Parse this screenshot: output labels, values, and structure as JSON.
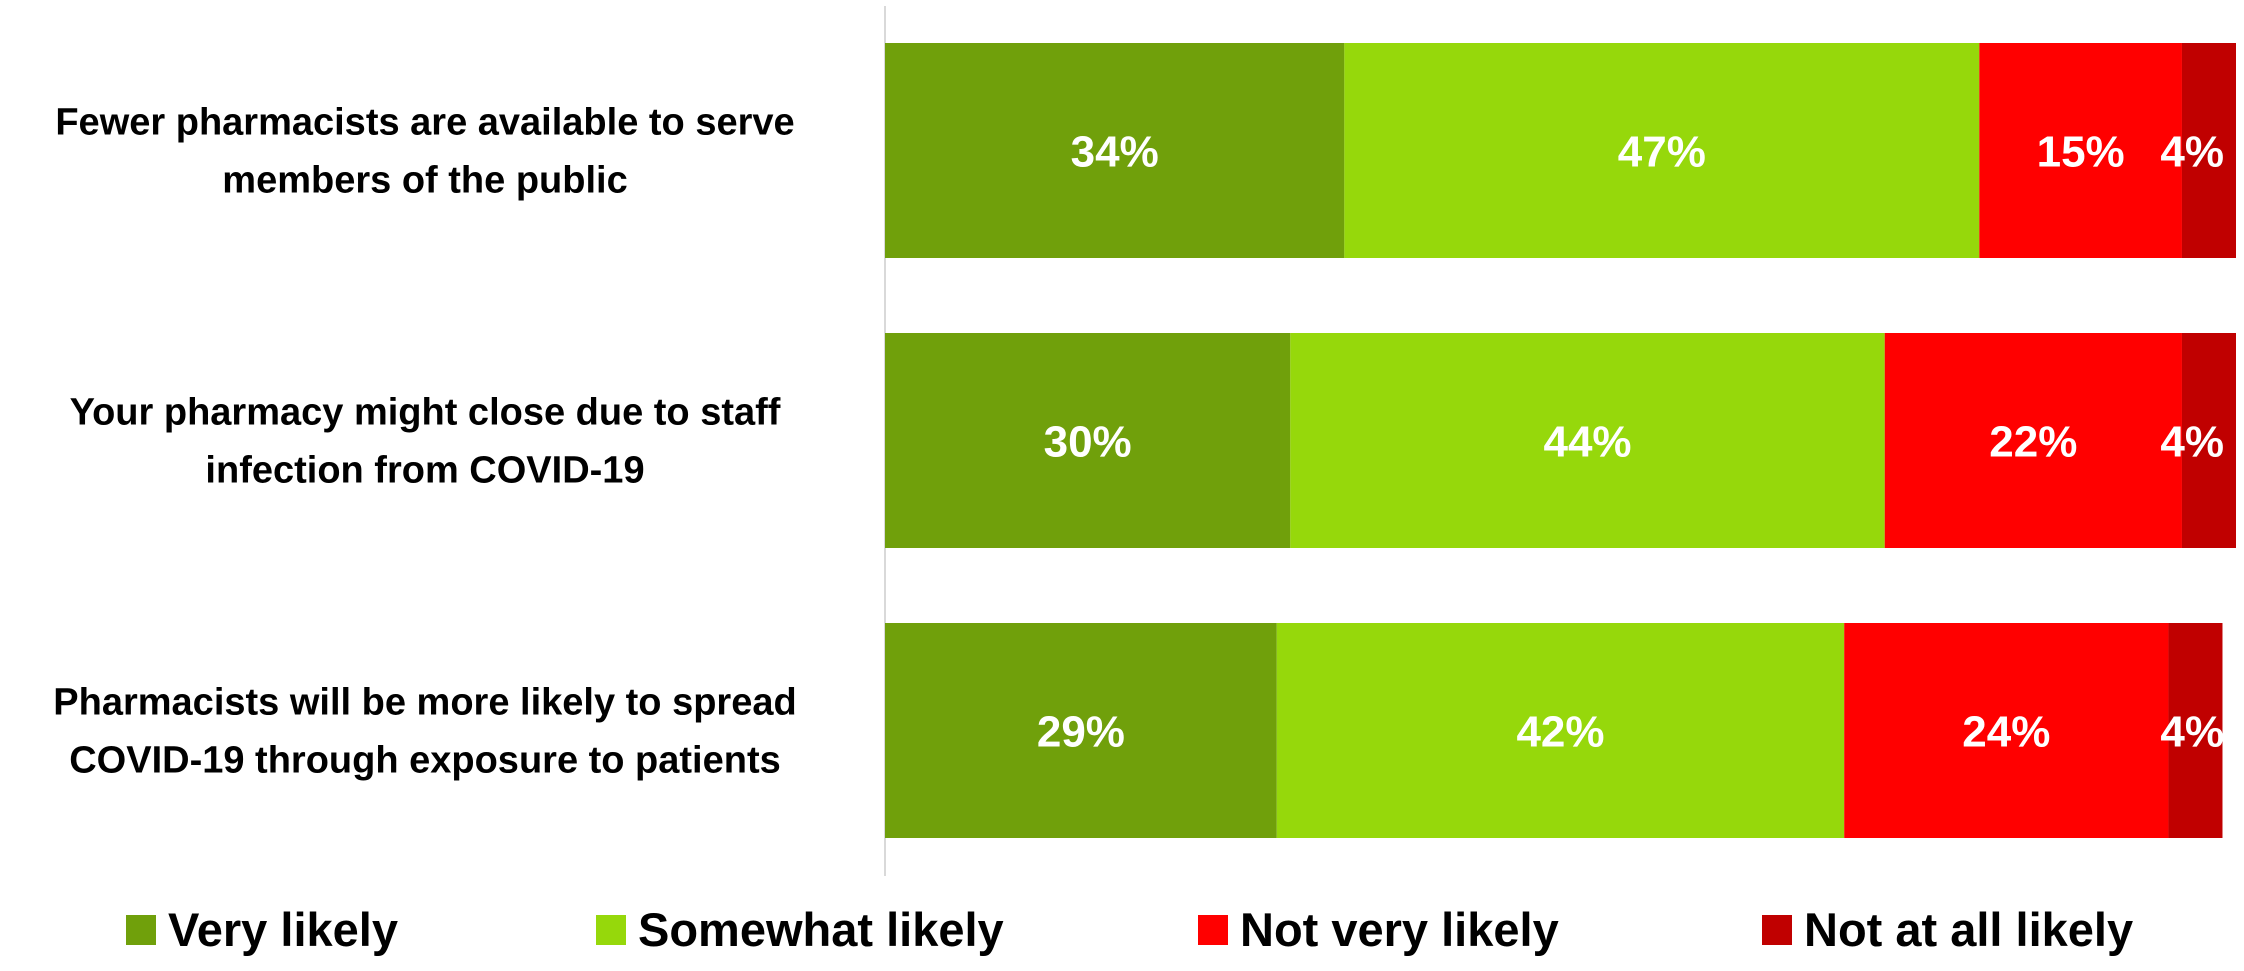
{
  "chart_data": {
    "type": "bar",
    "orientation": "horizontal",
    "stacked": true,
    "title": "",
    "xlabel": "",
    "ylabel": "",
    "xlim": [
      0,
      100
    ],
    "grid": false,
    "legend_position": "bottom",
    "categories": [
      "Fewer pharmacists are available to serve members of the public",
      "Your pharmacy might close due to staff infection from COVID-19",
      "Pharmacists will be more likely to spread COVID-19 through exposure to patients"
    ],
    "category_lines": [
      [
        "Fewer pharmacists are available to serve",
        "members of the public"
      ],
      [
        "Your pharmacy might close due to staff",
        "infection from COVID-19"
      ],
      [
        "Pharmacists will be more likely to spread",
        "COVID-19 through exposure to patients"
      ]
    ],
    "series": [
      {
        "name": "Very likely",
        "color": "#70a00b",
        "values": [
          34,
          30,
          29
        ],
        "labels": [
          "34%",
          "30%",
          "29%"
        ]
      },
      {
        "name": "Somewhat likely",
        "color": "#96d80b",
        "values": [
          47,
          44,
          42
        ],
        "labels": [
          "47%",
          "44%",
          "42%"
        ]
      },
      {
        "name": "Not very likely",
        "color": "#ff0000",
        "values": [
          15,
          22,
          24
        ],
        "labels": [
          "15%",
          "22%",
          "24%"
        ]
      },
      {
        "name": "Not at all likely",
        "color": "#c00000",
        "values": [
          4,
          4,
          4
        ],
        "labels": [
          "4%",
          "4%",
          "4%"
        ]
      }
    ]
  }
}
